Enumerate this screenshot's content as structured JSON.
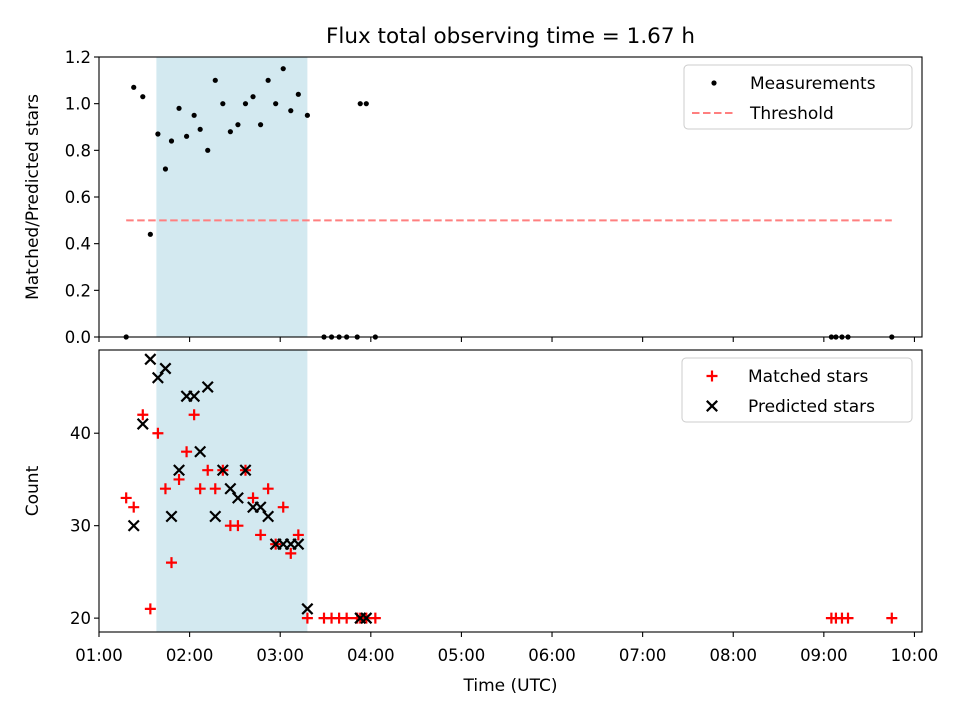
{
  "chart_data": {
    "type": "scatter",
    "title": "Flux total observing time = 1.67 h",
    "xlabel": "Time (UTC)",
    "x_ticks": [
      "01:00",
      "02:00",
      "03:00",
      "04:00",
      "05:00",
      "06:00",
      "07:00",
      "08:00",
      "09:00",
      "10:00"
    ],
    "observing_window": {
      "start": "01:38",
      "end": "03:18",
      "color": "#d3e9f0"
    },
    "colors": {
      "measurements": "#000000",
      "threshold": "#ff7f7f",
      "matched": "#ff0000",
      "predicted": "#000000",
      "span": "#d3e9f0"
    },
    "panels": [
      {
        "ylabel": "Matched/Predicted stars",
        "ylim": [
          0,
          1.2
        ],
        "yticks": [
          "0.0",
          "0.2",
          "0.4",
          "0.6",
          "0.8",
          "1.0",
          "1.2"
        ],
        "legend": {
          "position": "top-right",
          "entries": [
            "Measurements",
            "Threshold"
          ]
        },
        "threshold": {
          "value": 0.5,
          "x_start": "01:18",
          "x_end": "09:45"
        },
        "series": [
          {
            "name": "Measurements",
            "marker": "dot",
            "points": [
              [
                "01:18",
                0.0
              ],
              [
                "01:23",
                1.07
              ],
              [
                "01:29",
                1.03
              ],
              [
                "01:34",
                0.44
              ],
              [
                "01:39",
                0.87
              ],
              [
                "01:44",
                0.72
              ],
              [
                "01:48",
                0.84
              ],
              [
                "01:53",
                0.98
              ],
              [
                "01:58",
                0.86
              ],
              [
                "02:03",
                0.95
              ],
              [
                "02:07",
                0.89
              ],
              [
                "02:12",
                0.8
              ],
              [
                "02:17",
                1.1
              ],
              [
                "02:22",
                1.0
              ],
              [
                "02:27",
                0.88
              ],
              [
                "02:32",
                0.91
              ],
              [
                "02:37",
                1.0
              ],
              [
                "02:42",
                1.03
              ],
              [
                "02:47",
                0.91
              ],
              [
                "02:52",
                1.1
              ],
              [
                "02:57",
                1.0
              ],
              [
                "03:02",
                1.15
              ],
              [
                "03:07",
                0.97
              ],
              [
                "03:12",
                1.04
              ],
              [
                "03:18",
                0.95
              ],
              [
                "03:29",
                0.0
              ],
              [
                "03:34",
                0.0
              ],
              [
                "03:39",
                0.0
              ],
              [
                "03:44",
                0.0
              ],
              [
                "03:51",
                0.0
              ],
              [
                "03:53",
                1.0
              ],
              [
                "03:57",
                1.0
              ],
              [
                "04:03",
                0.0
              ],
              [
                "09:05",
                0.0
              ],
              [
                "09:08",
                0.0
              ],
              [
                "09:12",
                0.0
              ],
              [
                "09:16",
                0.0
              ],
              [
                "09:45",
                0.0
              ]
            ]
          }
        ]
      },
      {
        "ylabel": "Count",
        "ylim": [
          18.5,
          49
        ],
        "yticks": [
          "20",
          "30",
          "40"
        ],
        "legend": {
          "position": "top-right",
          "entries": [
            "Matched stars",
            "Predicted stars"
          ]
        },
        "series": [
          {
            "name": "Matched stars",
            "marker": "plus",
            "points": [
              [
                "01:18",
                33
              ],
              [
                "01:23",
                32
              ],
              [
                "01:29",
                42
              ],
              [
                "01:34",
                21
              ],
              [
                "01:39",
                40
              ],
              [
                "01:44",
                34
              ],
              [
                "01:48",
                26
              ],
              [
                "01:53",
                35
              ],
              [
                "01:58",
                38
              ],
              [
                "02:03",
                42
              ],
              [
                "02:07",
                34
              ],
              [
                "02:12",
                36
              ],
              [
                "02:17",
                34
              ],
              [
                "02:22",
                36
              ],
              [
                "02:27",
                30
              ],
              [
                "02:32",
                30
              ],
              [
                "02:37",
                36
              ],
              [
                "02:42",
                33
              ],
              [
                "02:47",
                29
              ],
              [
                "02:52",
                34
              ],
              [
                "02:57",
                28
              ],
              [
                "03:02",
                32
              ],
              [
                "03:07",
                27
              ],
              [
                "03:12",
                29
              ],
              [
                "03:18",
                20
              ],
              [
                "03:29",
                20
              ],
              [
                "03:34",
                20
              ],
              [
                "03:39",
                20
              ],
              [
                "03:44",
                20
              ],
              [
                "03:51",
                20
              ],
              [
                "03:53",
                20
              ],
              [
                "03:57",
                20
              ],
              [
                "04:03",
                20
              ],
              [
                "09:05",
                20
              ],
              [
                "09:08",
                20
              ],
              [
                "09:12",
                20
              ],
              [
                "09:16",
                20
              ],
              [
                "09:45",
                20
              ]
            ]
          },
          {
            "name": "Predicted stars",
            "marker": "x",
            "points": [
              [
                "01:23",
                30
              ],
              [
                "01:29",
                41
              ],
              [
                "01:34",
                48
              ],
              [
                "01:39",
                46
              ],
              [
                "01:44",
                47
              ],
              [
                "01:48",
                31
              ],
              [
                "01:53",
                36
              ],
              [
                "01:58",
                44
              ],
              [
                "02:03",
                44
              ],
              [
                "02:07",
                38
              ],
              [
                "02:12",
                45
              ],
              [
                "02:17",
                31
              ],
              [
                "02:22",
                36
              ],
              [
                "02:27",
                34
              ],
              [
                "02:32",
                33
              ],
              [
                "02:37",
                36
              ],
              [
                "02:42",
                32
              ],
              [
                "02:47",
                32
              ],
              [
                "02:52",
                31
              ],
              [
                "02:57",
                28
              ],
              [
                "03:02",
                28
              ],
              [
                "03:07",
                28
              ],
              [
                "03:12",
                28
              ],
              [
                "03:18",
                21
              ],
              [
                "03:53",
                20
              ],
              [
                "03:57",
                20
              ]
            ]
          }
        ]
      }
    ]
  }
}
